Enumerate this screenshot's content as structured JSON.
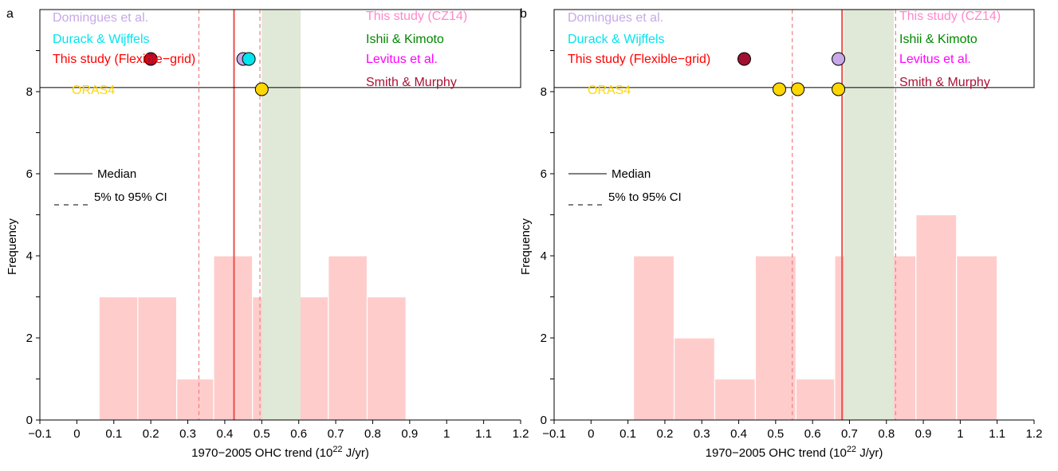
{
  "chart_data": [
    {
      "panel_label": "a",
      "type": "bar",
      "xlabel_prefix": "1970−2005 OHC trend (10",
      "xlabel_sup": "22",
      "xlabel_suffix": " J/yr)",
      "ylabel": "Frequency",
      "xlim": [
        -0.1,
        1.2
      ],
      "ylim": [
        0,
        10
      ],
      "xticks": [
        -0.1,
        0,
        0.1,
        0.2,
        0.3,
        0.4,
        0.5,
        0.6,
        0.7,
        0.8,
        0.9,
        1.0,
        1.1,
        1.2
      ],
      "xtick_labels": [
        "−0.1",
        "0",
        "0.1",
        "0.2",
        "0.3",
        "0.4",
        "0.5",
        "0.6",
        "0.7",
        "0.8",
        "0.9",
        "1",
        "1.1",
        "1.2"
      ],
      "yticks": [
        0,
        2,
        4,
        6,
        8
      ],
      "ytick_labels": [
        "0",
        "2",
        "4",
        "6",
        "8"
      ],
      "histogram": {
        "color": "#ffcccc",
        "bins": [
          {
            "x0": 0.06,
            "x1": 0.165,
            "count": 3
          },
          {
            "x0": 0.165,
            "x1": 0.27,
            "count": 3
          },
          {
            "x0": 0.27,
            "x1": 0.37,
            "count": 1
          },
          {
            "x0": 0.37,
            "x1": 0.475,
            "count": 4
          },
          {
            "x0": 0.475,
            "x1": 0.58,
            "count": 3
          },
          {
            "x0": 0.58,
            "x1": 0.68,
            "count": 3
          },
          {
            "x0": 0.68,
            "x1": 0.785,
            "count": 4
          },
          {
            "x0": 0.785,
            "x1": 0.89,
            "count": 3
          }
        ]
      },
      "histogram_note": "bins as drawn",
      "median": {
        "value": 0.425,
        "color": "#e8504a"
      },
      "ci": {
        "values": [
          0.33,
          0.495
        ],
        "color": "#f08080"
      },
      "shaded_band": {
        "x0": 0.5,
        "x1": 0.605,
        "color": "#e0e8d8"
      },
      "legend_box_ymin": 8.1,
      "legend": {
        "median_label": "Median",
        "ci_label": "5% to 95% CI"
      },
      "dataset_labels_left": [
        {
          "text": "Domingues et al.",
          "color": "#c8a8e8"
        },
        {
          "text": "Durack & Wijffels",
          "color": "#00e5ee"
        },
        {
          "text": "This study (Flexible−grid)",
          "color": "#ff0000"
        },
        {
          "text": "ORAS4",
          "color": "#ffd700"
        }
      ],
      "dataset_labels_right": [
        {
          "text": "This study (CZ14)",
          "color": "#ff88cc"
        },
        {
          "text": "Ishii & Kimoto",
          "color": "#008800"
        },
        {
          "text": "Levitus et al.",
          "color": "#ff00ff"
        },
        {
          "text": "Smith & Murphy",
          "color": "#aa1133"
        }
      ],
      "markers": [
        {
          "x": 0.2,
          "row": 0,
          "color": "#a01030"
        },
        {
          "x": 0.45,
          "row": 0,
          "color": "#c8a8e8"
        },
        {
          "x": 0.465,
          "row": 0,
          "color": "#00e5ee"
        },
        {
          "x": 0.5,
          "row": 1,
          "color": "#ffd700"
        }
      ]
    },
    {
      "panel_label": "b",
      "type": "bar",
      "xlabel_prefix": "1970−2005 OHC trend (10",
      "xlabel_sup": "22",
      "xlabel_suffix": " J/yr)",
      "ylabel": "Frequency",
      "xlim": [
        -0.1,
        1.2
      ],
      "ylim": [
        0,
        10
      ],
      "xticks": [
        -0.1,
        0,
        0.1,
        0.2,
        0.3,
        0.4,
        0.5,
        0.6,
        0.7,
        0.8,
        0.9,
        1.0,
        1.1,
        1.2
      ],
      "xtick_labels": [
        "−0.1",
        "0",
        "0.1",
        "0.2",
        "0.3",
        "0.4",
        "0.5",
        "0.6",
        "0.7",
        "0.8",
        "0.9",
        "1",
        "1.1",
        "1.2"
      ],
      "yticks": [
        0,
        2,
        4,
        6,
        8
      ],
      "ytick_labels": [
        "0",
        "2",
        "4",
        "6",
        "8"
      ],
      "histogram": {
        "color": "#ffcccc",
        "bins": [
          {
            "x0": 0.115,
            "x1": 0.225,
            "count": 4
          },
          {
            "x0": 0.225,
            "x1": 0.335,
            "count": 2
          },
          {
            "x0": 0.335,
            "x1": 0.445,
            "count": 1
          },
          {
            "x0": 0.445,
            "x1": 0.555,
            "count": 4
          },
          {
            "x0": 0.555,
            "x1": 0.66,
            "count": 1
          },
          {
            "x0": 0.66,
            "x1": 0.77,
            "count": 4
          },
          {
            "x0": 0.77,
            "x1": 0.88,
            "count": 4
          },
          {
            "x0": 0.88,
            "x1": 0.99,
            "count": 5
          },
          {
            "x0": 0.99,
            "x1": 1.1,
            "count": 4
          }
        ]
      },
      "histogram_note": "bins as drawn",
      "median": {
        "value": 0.68,
        "color": "#e8504a"
      },
      "ci": {
        "values": [
          0.545,
          0.825
        ],
        "color": "#f08080"
      },
      "shaded_band": {
        "x0": 0.685,
        "x1": 0.82,
        "color": "#e0e8d8"
      },
      "legend_box_ymin": 8.1,
      "legend": {
        "median_label": "Median",
        "ci_label": "5% to 95% CI"
      },
      "dataset_labels_left": [
        {
          "text": "Domingues et al.",
          "color": "#c8a8e8"
        },
        {
          "text": "Durack & Wijffels",
          "color": "#00e5ee"
        },
        {
          "text": "This study (Flexible−grid)",
          "color": "#ff0000"
        },
        {
          "text": "ORAS4",
          "color": "#ffd700"
        }
      ],
      "dataset_labels_right": [
        {
          "text": "This study (CZ14)",
          "color": "#ff88cc"
        },
        {
          "text": "Ishii & Kimoto",
          "color": "#008800"
        },
        {
          "text": "Levitus et al.",
          "color": "#ff00ff"
        },
        {
          "text": "Smith & Murphy",
          "color": "#aa1133"
        }
      ],
      "markers": [
        {
          "x": 0.415,
          "row": 0,
          "color": "#a01030"
        },
        {
          "x": 0.67,
          "row": 0,
          "color": "#c8a8e8"
        },
        {
          "x": 0.51,
          "row": 1,
          "color": "#ffd700"
        },
        {
          "x": 0.56,
          "row": 1,
          "color": "#ffd700"
        },
        {
          "x": 0.67,
          "row": 1,
          "color": "#ffd700"
        }
      ]
    }
  ]
}
